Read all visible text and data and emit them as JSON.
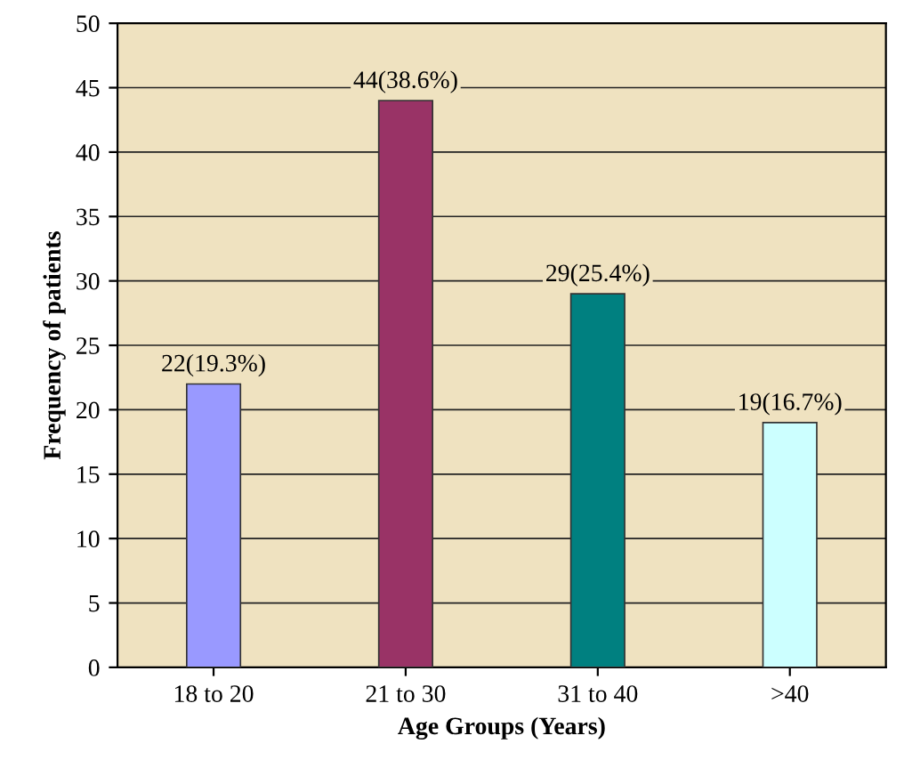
{
  "chart_data": {
    "type": "bar",
    "xlabel": "Age Groups (Years)",
    "ylabel": "Frequency of patients",
    "categories": [
      "18 to 20",
      "21 to 30",
      "31 to 40",
      ">40"
    ],
    "values": [
      22,
      44,
      29,
      19
    ],
    "colors": [
      "#9999ff",
      "#993366",
      "#008080",
      "#ccffff"
    ],
    "value_labels": [
      "22(19.3%)",
      "44(38.6%)",
      "29(25.4%)",
      "19(16.7%)"
    ],
    "ylim": [
      0,
      50
    ],
    "yticks": [
      0,
      5,
      10,
      15,
      20,
      25,
      30,
      35,
      40,
      45,
      50
    ],
    "grid": "y",
    "legend": false
  }
}
